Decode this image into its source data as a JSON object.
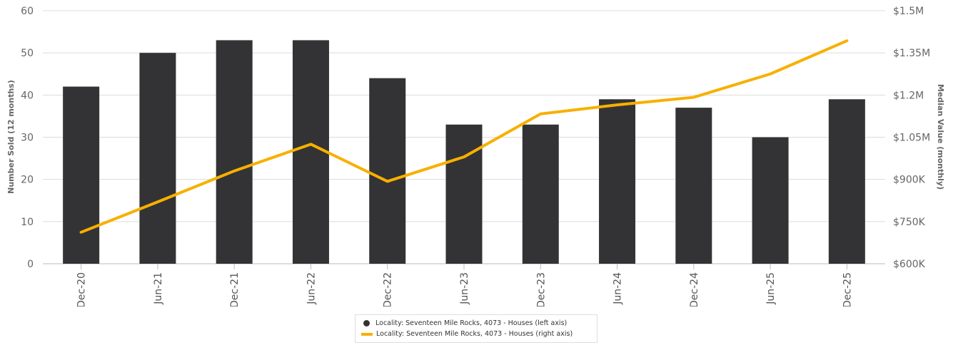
{
  "chart_data": {
    "type": "bar",
    "categories": [
      "Dec-20",
      "Jun-21",
      "Dec-21",
      "Jun-22",
      "Dec-22",
      "Jun-23",
      "Dec-23",
      "Jun-24",
      "Dec-24",
      "Jun-25",
      "Dec-25"
    ],
    "ylabel": "Number Sold (12 months)",
    "y2label": "Median Value (monthly)",
    "ylim": [
      0,
      60
    ],
    "y2lim": [
      600000,
      1500000
    ],
    "yticks": [
      "0",
      "10",
      "20",
      "30",
      "40",
      "50",
      "60"
    ],
    "y2ticks": [
      "$600K",
      "$750K",
      "$900K",
      "$1.05M",
      "$1.2M",
      "$1.35M",
      "$1.5M"
    ],
    "grid": true,
    "legend_position": "bottom",
    "series": [
      {
        "name": "Locality: Seventeen Mile Rocks, 4073 - Houses (left axis)",
        "type": "bar",
        "axis": "left",
        "color": "#333335",
        "values": [
          42,
          50,
          53,
          53,
          44,
          33,
          33,
          39,
          37,
          30,
          39
        ]
      },
      {
        "name": "Locality: Seventeen Mile Rocks, 4073 - Houses (right axis)",
        "type": "line",
        "axis": "right",
        "color": "#F7B000",
        "values": [
          712000,
          820000,
          930000,
          1025000,
          893000,
          980000,
          1133000,
          1165000,
          1192000,
          1275000,
          1393000
        ]
      }
    ]
  }
}
